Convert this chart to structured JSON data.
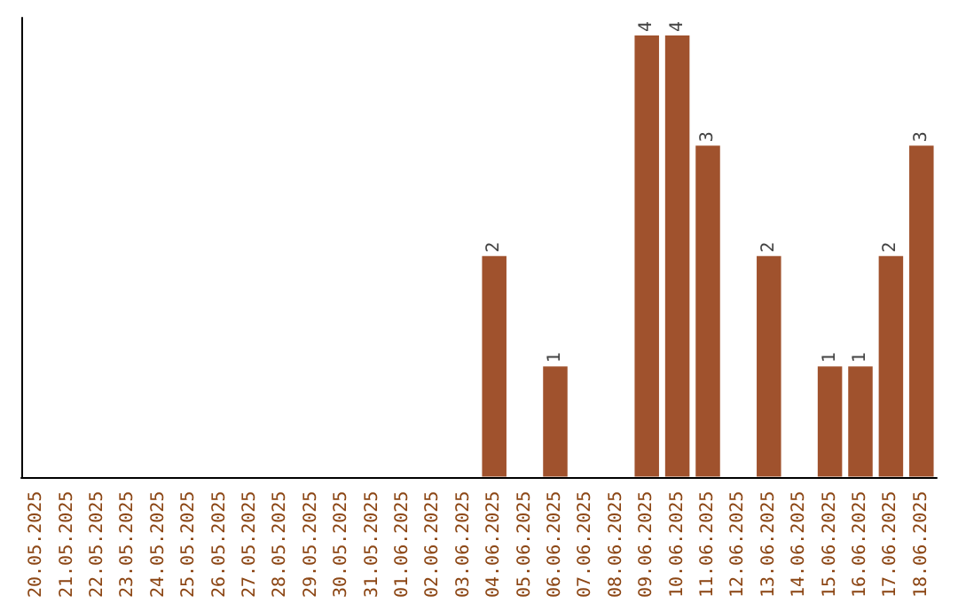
{
  "chart_data": {
    "type": "bar",
    "categories": [
      "20.05.2025",
      "21.05.2025",
      "22.05.2025",
      "23.05.2025",
      "24.05.2025",
      "25.05.2025",
      "26.05.2025",
      "27.05.2025",
      "28.05.2025",
      "29.05.2025",
      "30.05.2025",
      "31.05.2025",
      "01.06.2025",
      "02.06.2025",
      "03.06.2025",
      "04.06.2025",
      "05.06.2025",
      "06.06.2025",
      "07.06.2025",
      "08.06.2025",
      "09.06.2025",
      "10.06.2025",
      "11.06.2025",
      "12.06.2025",
      "13.06.2025",
      "14.06.2025",
      "15.06.2025",
      "16.06.2025",
      "17.06.2025",
      "18.06.2025"
    ],
    "values": [
      null,
      null,
      null,
      null,
      null,
      null,
      null,
      null,
      null,
      null,
      null,
      null,
      null,
      null,
      null,
      2,
      null,
      1,
      null,
      null,
      4,
      4,
      3,
      null,
      2,
      null,
      1,
      1,
      2,
      3
    ],
    "data_labels": true,
    "color": "#a0522d",
    "tick_labels": "x",
    "grid": false
  }
}
